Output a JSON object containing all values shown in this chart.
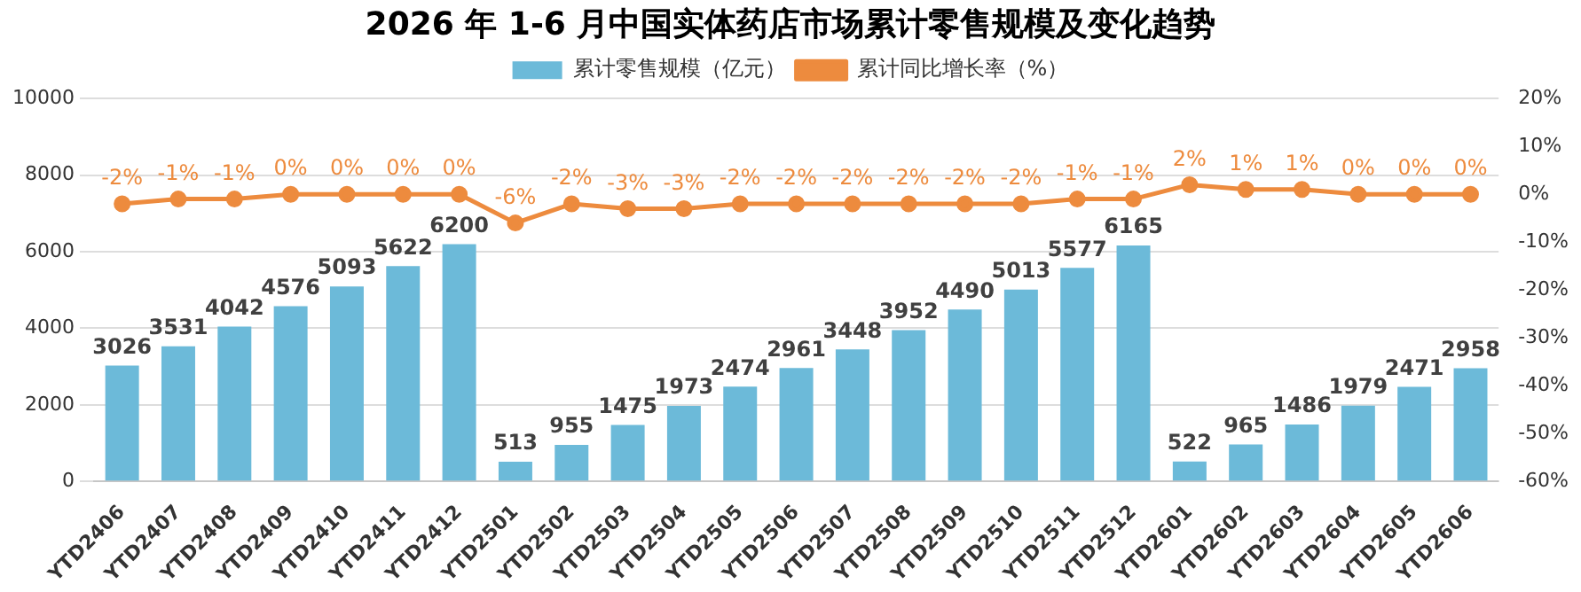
{
  "chart_data": {
    "type": "bar",
    "title": "2026 年 1-6 月中国实体药店市场累计零售规模及变化趋势",
    "categories": [
      "YTD2406",
      "YTD2407",
      "YTD2408",
      "YTD2409",
      "YTD2410",
      "YTD2411",
      "YTD2412",
      "YTD2501",
      "YTD2502",
      "YTD2503",
      "YTD2504",
      "YTD2505",
      "YTD2506",
      "YTD2507",
      "YTD2508",
      "YTD2509",
      "YTD2510",
      "YTD2511",
      "YTD2512",
      "YTD2601",
      "YTD2602",
      "YTD2603",
      "YTD2604",
      "YTD2605",
      "YTD2606"
    ],
    "series": [
      {
        "name": "累计零售规模（亿元）",
        "color": "#6cbad9",
        "values": [
          3026,
          3531,
          4042,
          4576,
          5093,
          5622,
          6200,
          513,
          955,
          1475,
          1973,
          2474,
          2961,
          3448,
          3952,
          4490,
          5013,
          5577,
          6165,
          522,
          965,
          1486,
          1979,
          2471,
          2958
        ],
        "value_labels": [
          "3026",
          "3531",
          "4042",
          "4576",
          "5093",
          "5622",
          "6200",
          "513",
          "955",
          "1475",
          "1973",
          "2474",
          "2961",
          "3448",
          "3952",
          "4490",
          "5013",
          "5577",
          "6165",
          "522",
          "965",
          "1486",
          "1979",
          "2471",
          "2958"
        ]
      },
      {
        "name": "累计同比增长率（%）",
        "type": "line",
        "axis": "y2",
        "color": "#ed8b3e",
        "marker": "circle",
        "values": [
          -2,
          -1,
          -1,
          0,
          0,
          0,
          0,
          -6,
          -2,
          -3,
          -3,
          -2,
          -2,
          -2,
          -2,
          -2,
          -2,
          -1,
          -1,
          2,
          1,
          1,
          0,
          0,
          0
        ],
        "value_labels": [
          "-2%",
          "-1%",
          "-1%",
          "0%",
          "0%",
          "0%",
          "0%",
          "-6%",
          "-2%",
          "-3%",
          "-3%",
          "-2%",
          "-2%",
          "-2%",
          "-2%",
          "-2%",
          "-2%",
          "-1%",
          "-1%",
          "2%",
          "1%",
          "1%",
          "0%",
          "0%",
          "0%"
        ]
      }
    ],
    "ylim": [
      0,
      10000
    ],
    "yticks": [
      0,
      2000,
      4000,
      6000,
      8000,
      10000
    ],
    "y2lim": [
      -60,
      20
    ],
    "y2ticks": [
      {
        "value": -60,
        "label": "-60%"
      },
      {
        "value": -50,
        "label": "-50%"
      },
      {
        "value": -40,
        "label": "-40%"
      },
      {
        "value": -30,
        "label": "-30%"
      },
      {
        "value": -20,
        "label": "-20%"
      },
      {
        "value": -10,
        "label": "-10%"
      },
      {
        "value": 0,
        "label": "0%"
      },
      {
        "value": 10,
        "label": "10%"
      },
      {
        "value": 20,
        "label": "20%"
      }
    ],
    "grid": "y",
    "legend": "top"
  }
}
